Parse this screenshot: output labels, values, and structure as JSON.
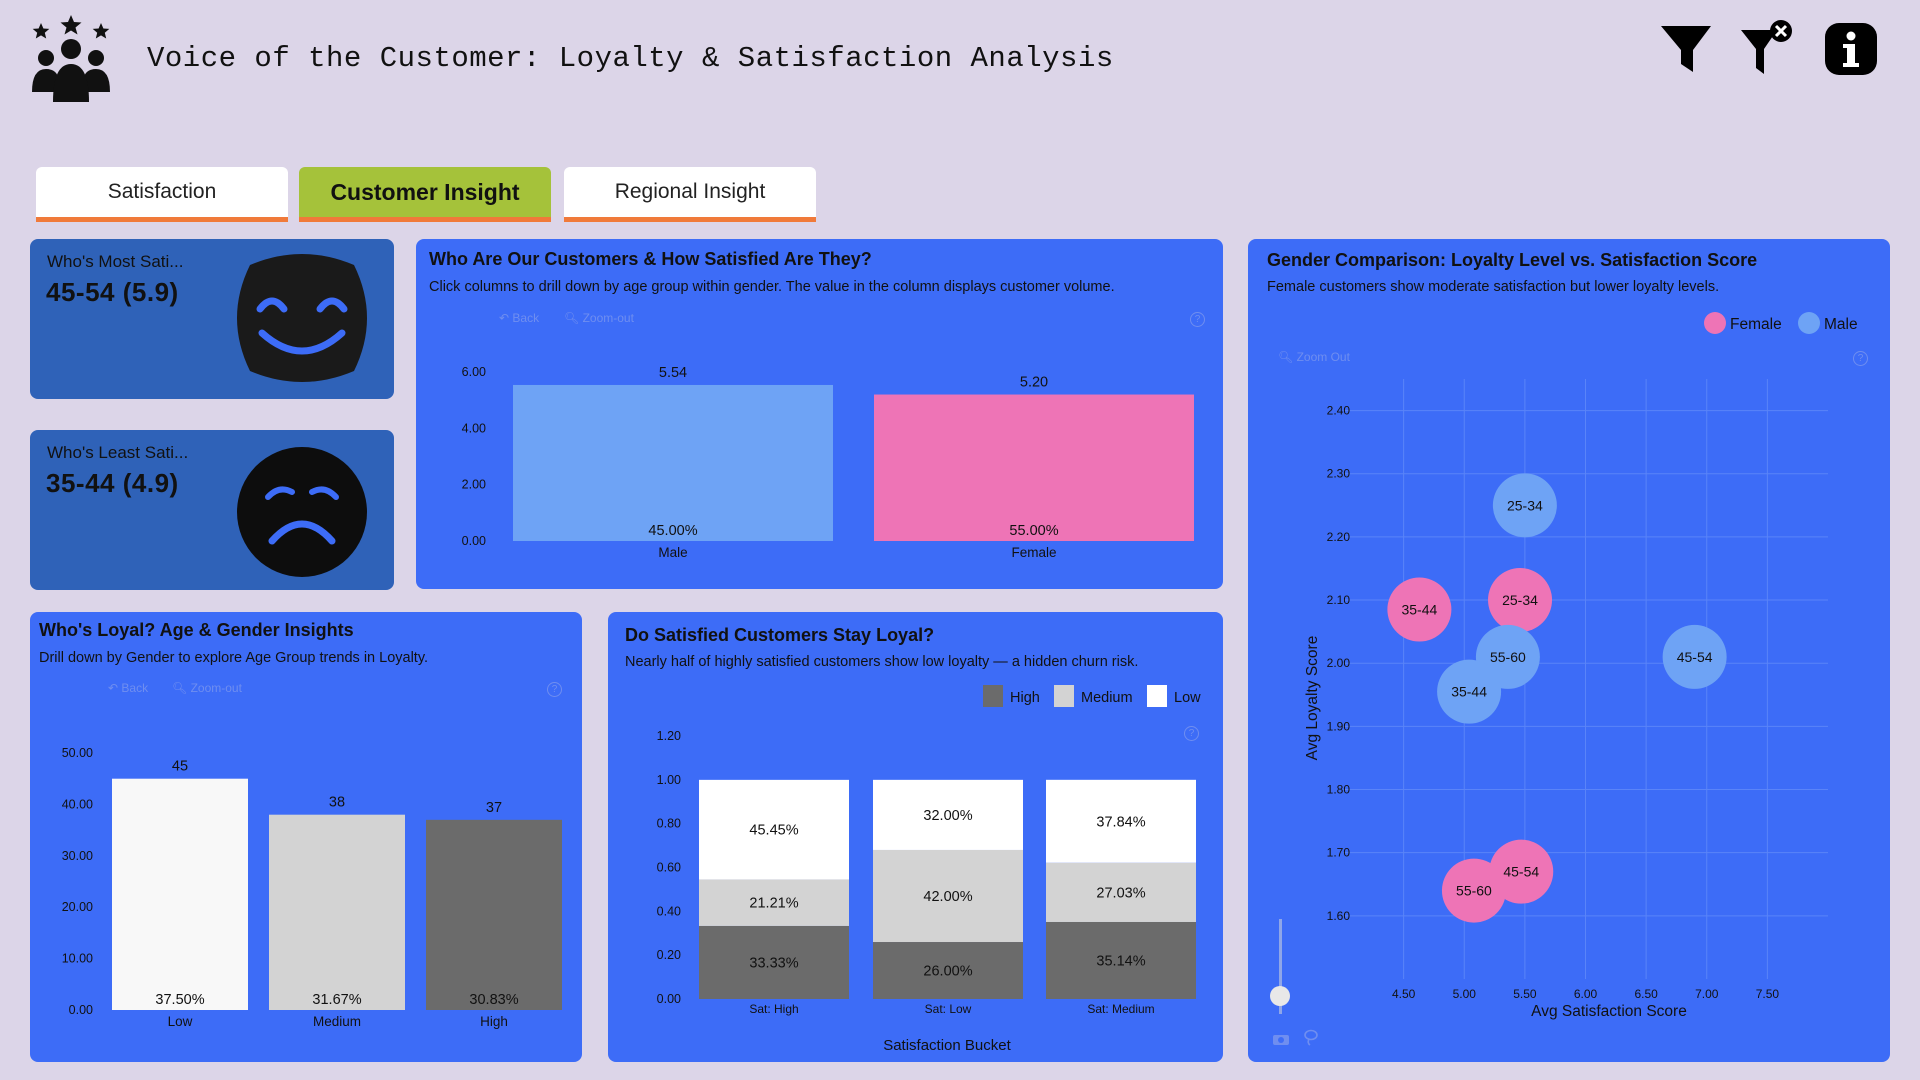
{
  "header": {
    "title": "Voice of the Customer: Loyalty & Satisfaction Analysis",
    "logo_icon": "customer-group-stars-icon",
    "icons": [
      "filter-icon",
      "clear-filter-icon",
      "info-icon"
    ]
  },
  "tabs": [
    {
      "label": "Satisfaction",
      "active": false
    },
    {
      "label": "Customer Insight",
      "active": true
    },
    {
      "label": "Regional Insight",
      "active": false
    }
  ],
  "kpis": {
    "most": {
      "label": "Who's Most Sati...",
      "value": "45-54 (5.9)",
      "icon": "happy-face-icon"
    },
    "least": {
      "label": "Who's Least Sati...",
      "value": "35-44 (4.9)",
      "icon": "sad-face-icon"
    }
  },
  "controls": {
    "back": "Back",
    "zoom_out": "Zoom-out",
    "zoom_out_scatter": "Zoom Out",
    "help": "?"
  },
  "colors": {
    "male": "#6ea3f5",
    "female": "#ee74b6",
    "high": "#6b6b6b",
    "medium": "#d3d3d3",
    "low": "#ffffff",
    "panel": "#3d6cf7"
  },
  "chart_customers": {
    "title": "Who Are Our Customers & How Satisfied Are They?",
    "subtitle": "Click columns to drill down by age group within gender. The value in the column displays customer volume.",
    "chart_data": {
      "type": "bar",
      "categories": [
        "Male",
        "Female"
      ],
      "values": [
        5.54,
        5.2
      ],
      "value_labels": [
        "5.54",
        "5.20"
      ],
      "inner_labels": [
        "45.00%",
        "55.00%"
      ],
      "ylim": [
        0,
        6
      ],
      "yticks": [
        "0.00",
        "2.00",
        "4.00",
        "6.00"
      ],
      "colors": [
        "#6ea3f5",
        "#ee74b6"
      ]
    }
  },
  "chart_loyal": {
    "title": "Who's Loyal? Age & Gender Insights",
    "subtitle": "Drill down by Gender to explore Age Group trends in Loyalty.",
    "chart_data": {
      "type": "bar",
      "categories": [
        "Low",
        "Medium",
        "High"
      ],
      "values": [
        45,
        38,
        37
      ],
      "value_labels": [
        "45",
        "38",
        "37"
      ],
      "inner_labels": [
        "37.50%",
        "31.67%",
        "30.83%"
      ],
      "ylim": [
        0,
        50
      ],
      "yticks": [
        "0.00",
        "10.00",
        "20.00",
        "30.00",
        "40.00",
        "50.00"
      ],
      "colors": [
        "#f8f8f8",
        "#d3d3d3",
        "#6b6b6b"
      ]
    }
  },
  "chart_stay": {
    "title": "Do Satisfied Customers Stay Loyal?",
    "subtitle": "Nearly half of highly satisfied customers show low loyalty — a hidden churn risk.",
    "xlabel": "Satisfaction Bucket",
    "chart_data": {
      "type": "bar",
      "stacked": true,
      "categories": [
        "Sat: High",
        "Sat: Low",
        "Sat: Medium"
      ],
      "series": [
        {
          "name": "High",
          "values": [
            0.3333,
            0.26,
            0.3514
          ],
          "labels": [
            "33.33%",
            "26.00%",
            "35.14%"
          ],
          "color": "#6b6b6b"
        },
        {
          "name": "Medium",
          "values": [
            0.2121,
            0.42,
            0.2703
          ],
          "labels": [
            "21.21%",
            "42.00%",
            "27.03%"
          ],
          "color": "#d3d3d3"
        },
        {
          "name": "Low",
          "values": [
            0.4545,
            0.32,
            0.3784
          ],
          "labels": [
            "45.45%",
            "32.00%",
            "37.84%"
          ],
          "color": "#ffffff"
        }
      ],
      "ylim": [
        0,
        1.2
      ],
      "yticks": [
        "0.00",
        "0.20",
        "0.40",
        "0.60",
        "0.80",
        "1.00",
        "1.20"
      ],
      "legend": "top-right"
    }
  },
  "chart_gender": {
    "title": "Gender Comparison: Loyalty Level vs. Satisfaction Score",
    "subtitle": "Female customers show moderate satisfaction but lower loyalty levels.",
    "chart_data": {
      "type": "scatter",
      "xlabel": "Avg Satisfaction Score",
      "ylabel": "Avg Loyalty Score",
      "xlim": [
        4.0,
        8.0
      ],
      "ylim": [
        1.5,
        2.45
      ],
      "xticks": [
        4.5,
        5.0,
        5.5,
        6.0,
        6.5,
        7.0,
        7.5
      ],
      "xtick_labels": [
        "4.50",
        "5.00",
        "5.50",
        "6.00",
        "6.50",
        "7.00",
        "7.50"
      ],
      "yticks": [
        1.6,
        1.7,
        1.8,
        1.9,
        2.0,
        2.1,
        2.2,
        2.3,
        2.4
      ],
      "ytick_labels": [
        "1.60",
        "1.70",
        "1.80",
        "1.90",
        "2.00",
        "2.10",
        "2.20",
        "2.30",
        "2.40"
      ],
      "legend": "top-right",
      "series": [
        {
          "name": "Female",
          "color": "#ee74b6",
          "points": [
            {
              "label": "35-44",
              "x": 4.63,
              "y": 2.085
            },
            {
              "label": "25-34",
              "x": 5.46,
              "y": 2.1
            },
            {
              "label": "55-60",
              "x": 5.08,
              "y": 1.64
            },
            {
              "label": "45-54",
              "x": 5.47,
              "y": 1.67
            }
          ]
        },
        {
          "name": "Male",
          "color": "#6ea3f5",
          "points": [
            {
              "label": "25-34",
              "x": 5.5,
              "y": 2.25
            },
            {
              "label": "55-60",
              "x": 5.36,
              "y": 2.01
            },
            {
              "label": "35-44",
              "x": 5.04,
              "y": 1.955
            },
            {
              "label": "45-54",
              "x": 6.9,
              "y": 2.01
            }
          ]
        }
      ]
    }
  }
}
